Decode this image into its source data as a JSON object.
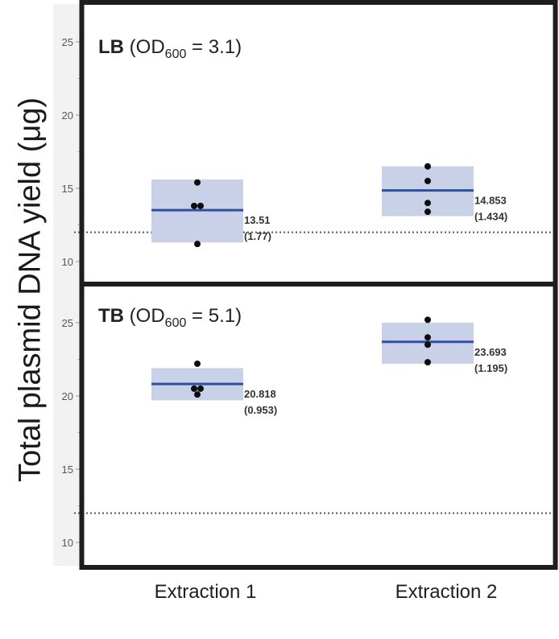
{
  "figure": {
    "ylabel": "Total plasmid DNA yield (μg)",
    "xlabels": [
      "Extraction 1",
      "Extraction 2"
    ],
    "colors": {
      "frame": "#1e1e1e",
      "box_fill": "#c9d1e8",
      "mean_line": "#2f4f9e",
      "points": "#0d0d0d",
      "strip": "#f2f2f2",
      "tick_text": "#555555",
      "reference_line": "#555555"
    },
    "panels": [
      {
        "title_bold": "LB",
        "title_rest_pre": "(OD",
        "title_sub": "600",
        "title_rest_post": " = 3.1)",
        "groups": [
          {
            "mean_label": "13.51",
            "sd_label": "(1.77)"
          },
          {
            "mean_label": "14.853",
            "sd_label": "(1.434)"
          }
        ]
      },
      {
        "title_bold": "TB",
        "title_rest_pre": "(OD",
        "title_sub": "600",
        "title_rest_post": " = 5.1)",
        "groups": [
          {
            "mean_label": "20.818",
            "sd_label": "(0.953)"
          },
          {
            "mean_label": "23.693",
            "sd_label": "(1.195)"
          }
        ]
      }
    ],
    "ticks": [
      "10",
      "15",
      "20",
      "25"
    ]
  },
  "chart_data": [
    {
      "type": "scatter",
      "title": "LB (OD600 = 3.1)",
      "xlabel": "",
      "ylabel": "Total plasmid DNA yield (μg)",
      "categories": [
        "Extraction 1",
        "Extraction 2"
      ],
      "ylim": [
        8.5,
        27
      ],
      "yticks": [
        10,
        15,
        20,
        25
      ],
      "reference_line": 12,
      "series": [
        {
          "name": "Extraction 1",
          "points": [
            15.4,
            13.8,
            13.8,
            11.2
          ],
          "mean": 13.51,
          "sd": 1.77,
          "band": [
            11.3,
            15.6
          ]
        },
        {
          "name": "Extraction 2",
          "points": [
            16.5,
            15.5,
            14.0,
            13.4
          ],
          "mean": 14.853,
          "sd": 1.434,
          "band": [
            13.1,
            16.5
          ]
        }
      ],
      "grid": false
    },
    {
      "type": "scatter",
      "title": "TB (OD600 = 5.1)",
      "xlabel": "",
      "ylabel": "Total plasmid DNA yield (μg)",
      "categories": [
        "Extraction 1",
        "Extraction 2"
      ],
      "ylim": [
        8.5,
        27
      ],
      "yticks": [
        10,
        15,
        20,
        25
      ],
      "reference_line": 12,
      "series": [
        {
          "name": "Extraction 1",
          "points": [
            22.2,
            20.5,
            20.5,
            20.1
          ],
          "mean": 20.818,
          "sd": 0.953,
          "band": [
            19.7,
            21.9
          ]
        },
        {
          "name": "Extraction 2",
          "points": [
            25.2,
            24.0,
            23.5,
            22.3
          ],
          "mean": 23.693,
          "sd": 1.195,
          "band": [
            22.2,
            25.0
          ]
        }
      ],
      "grid": false
    }
  ]
}
